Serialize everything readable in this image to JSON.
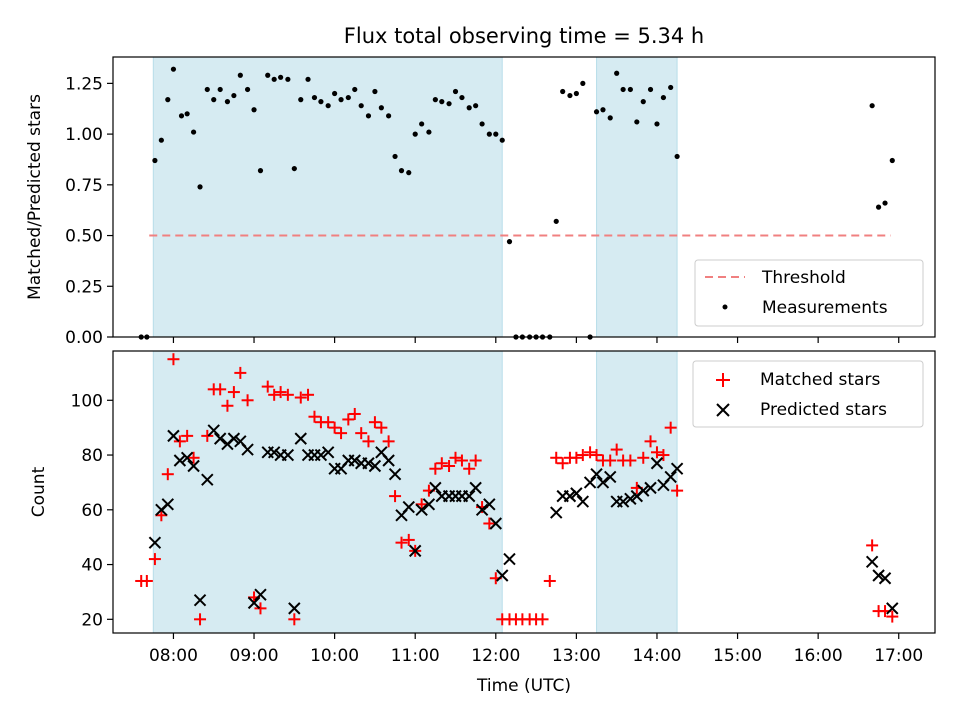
{
  "chart_data": [
    {
      "type": "scatter",
      "title": "Flux total observing time = 5.34 h",
      "xlabel": "",
      "ylabel": "Matched/Predicted stars",
      "xlim": [
        7.25,
        17.45
      ],
      "ylim": [
        0,
        1.38
      ],
      "yticks": [
        0,
        0.25,
        0.5,
        0.75,
        1.0,
        1.25
      ],
      "ytick_labels": [
        "0.00",
        "0.25",
        "0.50",
        "0.75",
        "1.00",
        "1.25"
      ],
      "shaded_intervals_hours": [
        [
          7.75,
          12.08
        ],
        [
          13.25,
          14.25
        ]
      ],
      "threshold": {
        "name": "Threshold",
        "value": 0.5,
        "x_range": [
          7.7,
          16.9
        ],
        "color": "#f08080"
      },
      "series": [
        {
          "name": "Measurements",
          "color": "#000000",
          "x": [
            7.6,
            7.67,
            7.77,
            7.85,
            7.93,
            8.0,
            8.1,
            8.17,
            8.25,
            8.33,
            8.42,
            8.5,
            8.58,
            8.67,
            8.75,
            8.83,
            8.92,
            9.0,
            9.08,
            9.17,
            9.25,
            9.33,
            9.42,
            9.5,
            9.58,
            9.67,
            9.75,
            9.83,
            9.92,
            10.0,
            10.08,
            10.17,
            10.25,
            10.33,
            10.42,
            10.5,
            10.58,
            10.67,
            10.75,
            10.83,
            10.92,
            11.0,
            11.08,
            11.17,
            11.25,
            11.33,
            11.42,
            11.5,
            11.58,
            11.67,
            11.75,
            11.83,
            11.92,
            12.0,
            12.08,
            12.17,
            12.25,
            12.33,
            12.42,
            12.5,
            12.58,
            12.67,
            12.75,
            12.83,
            12.92,
            13.0,
            13.08,
            13.17,
            13.25,
            13.33,
            13.42,
            13.5,
            13.58,
            13.67,
            13.75,
            13.83,
            13.92,
            14.0,
            14.08,
            14.17,
            14.25,
            16.67,
            16.75,
            16.83,
            16.92
          ],
          "y": [
            0,
            0,
            0.87,
            0.97,
            1.17,
            1.32,
            1.09,
            1.1,
            1.01,
            0.74,
            1.22,
            1.17,
            1.22,
            1.16,
            1.19,
            1.29,
            1.22,
            1.12,
            0.82,
            1.29,
            1.27,
            1.28,
            1.27,
            0.83,
            1.17,
            1.27,
            1.18,
            1.16,
            1.14,
            1.2,
            1.17,
            1.18,
            1.22,
            1.14,
            1.09,
            1.21,
            1.13,
            1.09,
            0.89,
            0.82,
            0.81,
            1.0,
            1.05,
            1.01,
            1.17,
            1.16,
            1.15,
            1.21,
            1.18,
            1.13,
            1.14,
            1.05,
            1.0,
            1.0,
            0.97,
            0.47,
            0,
            0,
            0,
            0,
            0,
            0,
            0.57,
            1.21,
            1.19,
            1.2,
            1.25,
            0,
            1.11,
            1.12,
            1.08,
            1.3,
            1.22,
            1.22,
            1.06,
            1.16,
            1.22,
            1.05,
            1.18,
            1.23,
            0.89,
            1.14,
            0.64,
            0.66,
            0.87
          ]
        }
      ],
      "legend": [
        "Threshold",
        "Measurements"
      ],
      "legend_position": "lower-right"
    },
    {
      "type": "scatter",
      "title": "",
      "xlabel": "Time (UTC)",
      "ylabel": "Count",
      "xlim": [
        7.25,
        17.45
      ],
      "ylim": [
        15,
        118
      ],
      "yticks": [
        20,
        40,
        60,
        80,
        100
      ],
      "ytick_labels": [
        "20",
        "40",
        "60",
        "80",
        "100"
      ],
      "xticks": [
        8,
        9,
        10,
        11,
        12,
        13,
        14,
        15,
        16,
        17
      ],
      "xtick_labels": [
        "08:00",
        "09:00",
        "10:00",
        "11:00",
        "12:00",
        "13:00",
        "14:00",
        "15:00",
        "16:00",
        "17:00"
      ],
      "shaded_intervals_hours": [
        [
          7.75,
          12.08
        ],
        [
          13.25,
          14.25
        ]
      ],
      "series": [
        {
          "name": "Matched stars",
          "marker": "plus",
          "color": "#ff0000",
          "x": [
            7.6,
            7.67,
            7.77,
            7.85,
            7.93,
            8.0,
            8.08,
            8.17,
            8.25,
            8.33,
            8.42,
            8.5,
            8.58,
            8.67,
            8.75,
            8.83,
            8.92,
            9.0,
            9.08,
            9.17,
            9.25,
            9.33,
            9.42,
            9.5,
            9.58,
            9.67,
            9.75,
            9.83,
            9.92,
            10.0,
            10.08,
            10.17,
            10.25,
            10.33,
            10.42,
            10.5,
            10.58,
            10.67,
            10.75,
            10.83,
            10.92,
            11.0,
            11.08,
            11.17,
            11.25,
            11.33,
            11.42,
            11.5,
            11.58,
            11.67,
            11.75,
            11.83,
            11.92,
            12.0,
            12.08,
            12.17,
            12.25,
            12.33,
            12.42,
            12.5,
            12.58,
            12.67,
            12.75,
            12.83,
            12.92,
            13.0,
            13.08,
            13.17,
            13.25,
            13.33,
            13.42,
            13.5,
            13.58,
            13.67,
            13.75,
            13.83,
            13.92,
            14.0,
            14.08,
            14.17,
            14.25,
            16.67,
            16.75,
            16.83,
            16.92
          ],
          "y": [
            34,
            34,
            42,
            58,
            73,
            115,
            85,
            87,
            79,
            20,
            87,
            104,
            104,
            98,
            103,
            110,
            100,
            28,
            24,
            105,
            102,
            103,
            102,
            20,
            101,
            102,
            94,
            92,
            92,
            90,
            88,
            93,
            95,
            88,
            85,
            92,
            90,
            85,
            65,
            48,
            49,
            45,
            62,
            67,
            75,
            77,
            76,
            79,
            78,
            75,
            78,
            61,
            55,
            35,
            20,
            20,
            20,
            20,
            20,
            20,
            20,
            34,
            79,
            77,
            79,
            79,
            80,
            81,
            80,
            78,
            78,
            82,
            78,
            78,
            68,
            79,
            85,
            81,
            80,
            90,
            67,
            47,
            23,
            23,
            21
          ]
        },
        {
          "name": "Predicted stars",
          "marker": "x",
          "color": "#000000",
          "x": [
            7.77,
            7.85,
            7.93,
            8.0,
            8.08,
            8.17,
            8.25,
            8.33,
            8.42,
            8.5,
            8.58,
            8.67,
            8.75,
            8.83,
            8.92,
            9.0,
            9.08,
            9.17,
            9.25,
            9.33,
            9.42,
            9.5,
            9.58,
            9.67,
            9.75,
            9.83,
            9.92,
            10.0,
            10.08,
            10.17,
            10.25,
            10.33,
            10.42,
            10.5,
            10.58,
            10.67,
            10.75,
            10.83,
            10.92,
            11.0,
            11.08,
            11.17,
            11.25,
            11.33,
            11.42,
            11.5,
            11.58,
            11.67,
            11.75,
            11.83,
            11.92,
            12.0,
            12.08,
            12.17,
            12.75,
            12.83,
            12.92,
            13.0,
            13.08,
            13.17,
            13.25,
            13.33,
            13.42,
            13.5,
            13.58,
            13.67,
            13.75,
            13.83,
            13.92,
            14.0,
            14.08,
            14.17,
            14.25,
            16.67,
            16.75,
            16.83,
            16.92
          ],
          "y": [
            48,
            60,
            62,
            87,
            78,
            79,
            76,
            27,
            71,
            89,
            86,
            84,
            86,
            85,
            82,
            26,
            29,
            81,
            81,
            80,
            80,
            24,
            86,
            80,
            80,
            80,
            81,
            75,
            75,
            78,
            78,
            77,
            77,
            76,
            81,
            78,
            73,
            58,
            61,
            45,
            60,
            62,
            68,
            65,
            65,
            65,
            65,
            65,
            68,
            60,
            62,
            55,
            36,
            42,
            59,
            65,
            65,
            66,
            63,
            70,
            73,
            70,
            72,
            63,
            63,
            64,
            65,
            67,
            68,
            77,
            69,
            72,
            75,
            41,
            36,
            35,
            24
          ]
        }
      ],
      "legend": [
        "Matched stars",
        "Predicted stars"
      ],
      "legend_position": "upper-right"
    }
  ]
}
